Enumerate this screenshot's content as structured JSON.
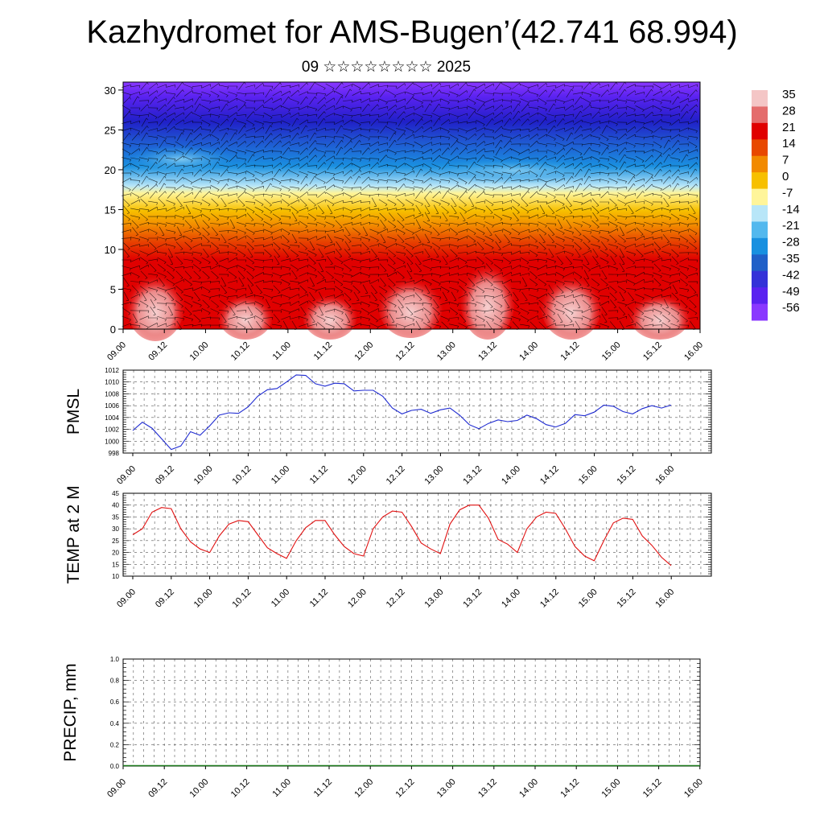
{
  "page": {
    "title": "Kazhydromet for AMS-Bugen’(42.741 68.994)",
    "subtitle": "09 ☆☆☆☆☆☆☆☆ 2025"
  },
  "chart_data": [
    {
      "type": "heatmap",
      "title": "",
      "xlabel": "",
      "ylabel": "",
      "x_ticklabels": [
        "09.00",
        "09.12",
        "10.00",
        "10.12",
        "11.00",
        "11.12",
        "12.00",
        "12.12",
        "13.00",
        "13.12",
        "14.00",
        "14.12",
        "15.00",
        "15.12",
        "16.00"
      ],
      "y_ticks": [
        0,
        5,
        10,
        15,
        20,
        25,
        30
      ],
      "ylim": [
        0,
        31
      ],
      "overlay": "wind barbs",
      "colorbar": {
        "labels": [
          "35",
          "28",
          "21",
          "14",
          "7",
          "0",
          "-7",
          "-14",
          "-21",
          "-28",
          "-35",
          "-42",
          "-49",
          "-56"
        ],
        "colors": [
          "#f4c6c6",
          "#e46c6c",
          "#e00000",
          "#e84800",
          "#f28a00",
          "#f7c000",
          "#fff59a",
          "#b8e6f8",
          "#52b8ee",
          "#1890e0",
          "#2060c8",
          "#3432d8",
          "#5a22f0",
          "#8a38ff"
        ]
      }
    },
    {
      "type": "line",
      "ylabel": "PMSL",
      "x_ticklabels": [
        "09.00",
        "09.12",
        "10.00",
        "10.12",
        "11.00",
        "11.12",
        "12.00",
        "12.12",
        "13.00",
        "13.12",
        "14.00",
        "14.12",
        "15.00",
        "15.12",
        "16.00"
      ],
      "y_ticklabels": [
        "998",
        "1000",
        "1002",
        "1004",
        "1006",
        "1008",
        "1010",
        "1012"
      ],
      "ylim": [
        998,
        1012
      ],
      "grid": true,
      "series": [
        {
          "color": "#1f2bd1",
          "values": [
            1001.8,
            1003.2,
            1002.2,
            1000.4,
            998.6,
            999.2,
            1001.6,
            1001.0,
            1002.6,
            1004.4,
            1004.8,
            1004.7,
            1005.8,
            1007.6,
            1008.7,
            1008.9,
            1010.0,
            1011.2,
            1011.1,
            1009.7,
            1009.3,
            1009.8,
            1009.7,
            1008.5,
            1008.6,
            1008.6,
            1007.6,
            1005.6,
            1004.6,
            1005.2,
            1005.4,
            1004.7,
            1005.3,
            1005.6,
            1004.4,
            1002.8,
            1002.1,
            1003.0,
            1003.6,
            1003.3,
            1003.5,
            1004.4,
            1003.8,
            1002.8,
            1002.4,
            1003.0,
            1004.5,
            1004.3,
            1004.9,
            1006.1,
            1005.9,
            1005.0,
            1004.6,
            1005.5,
            1006.0,
            1005.6,
            1006.1
          ]
        }
      ]
    },
    {
      "type": "line",
      "ylabel": "TEMP at 2 M",
      "x_ticklabels": [
        "09.00",
        "09.12",
        "10.00",
        "10.12",
        "11.00",
        "11.12",
        "12.00",
        "12.12",
        "13.00",
        "13.12",
        "14.00",
        "14.12",
        "15.00",
        "15.12",
        "16.00"
      ],
      "y_ticklabels": [
        "10",
        "15",
        "20",
        "25",
        "30",
        "35",
        "40",
        "45"
      ],
      "ylim": [
        10,
        45
      ],
      "grid": true,
      "series": [
        {
          "color": "#e01010",
          "values": [
            27.5,
            30,
            37,
            39,
            38.5,
            30,
            24.5,
            21.5,
            20,
            27,
            32,
            33.5,
            33,
            27.5,
            22,
            19.5,
            17.5,
            25,
            30.5,
            33.5,
            33.5,
            27.5,
            22.5,
            19.5,
            18.5,
            30,
            35,
            37.5,
            37,
            31,
            24,
            21.5,
            19.5,
            32,
            38,
            40,
            40,
            34.5,
            25.5,
            23.5,
            20,
            30,
            35,
            37,
            36.5,
            30,
            22.5,
            18.5,
            16.5,
            25,
            32.5,
            34.5,
            34,
            27,
            23,
            18,
            14.5
          ]
        }
      ]
    },
    {
      "type": "line",
      "ylabel": "PRECIP, mm",
      "x_ticklabels": [
        "09.00",
        "09.12",
        "10.00",
        "10.12",
        "11.00",
        "11.12",
        "12.00",
        "12.12",
        "13.00",
        "13.12",
        "14.00",
        "14.12",
        "15.00",
        "15.12",
        "16.00"
      ],
      "y_ticklabels": [
        "0.0",
        "0.2",
        "0.4",
        "0.6",
        "0.8",
        "1.0"
      ],
      "ylim": [
        0,
        1
      ],
      "grid": true,
      "series": []
    }
  ]
}
